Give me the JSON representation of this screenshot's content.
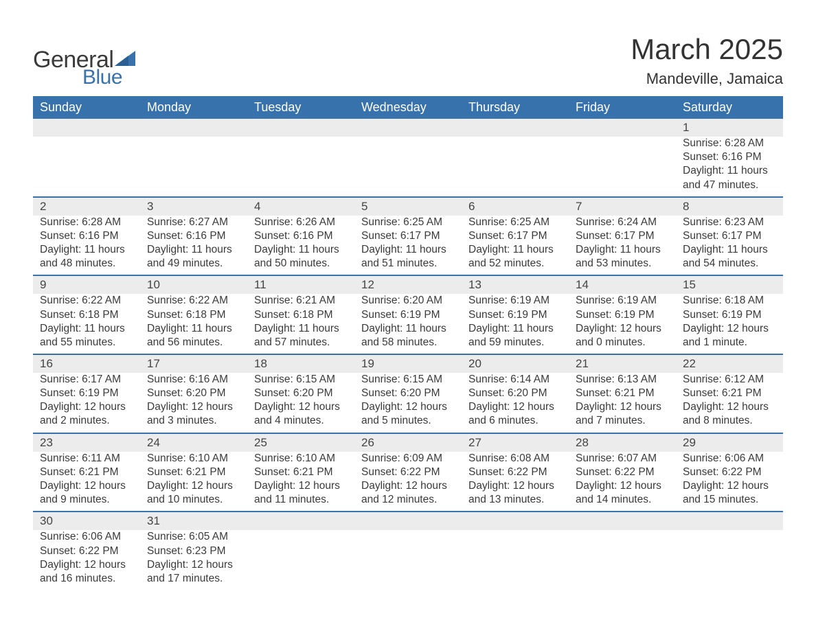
{
  "logo": {
    "general": "General",
    "blue": "Blue",
    "colors": {
      "text": "#3a3a3a",
      "accent": "#3872ac"
    }
  },
  "title": "March 2025",
  "location": "Mandeville, Jamaica",
  "weekday_headers": [
    "Sunday",
    "Monday",
    "Tuesday",
    "Wednesday",
    "Thursday",
    "Friday",
    "Saturday"
  ],
  "styling": {
    "header_bg": "#3872ac",
    "header_fg": "#ffffff",
    "daynum_bg": "#ececec",
    "row_divider": "#3872ac",
    "body_text": "#3a3a3a",
    "background": "#ffffff",
    "month_title_fontsize": 42,
    "location_fontsize": 22,
    "header_fontsize": 18,
    "cell_fontsize": 15.5
  },
  "weeks": [
    [
      null,
      null,
      null,
      null,
      null,
      null,
      {
        "n": "1",
        "sr": "Sunrise: 6:28 AM",
        "ss": "Sunset: 6:16 PM",
        "d1": "Daylight: 11 hours",
        "d2": "and 47 minutes."
      }
    ],
    [
      {
        "n": "2",
        "sr": "Sunrise: 6:28 AM",
        "ss": "Sunset: 6:16 PM",
        "d1": "Daylight: 11 hours",
        "d2": "and 48 minutes."
      },
      {
        "n": "3",
        "sr": "Sunrise: 6:27 AM",
        "ss": "Sunset: 6:16 PM",
        "d1": "Daylight: 11 hours",
        "d2": "and 49 minutes."
      },
      {
        "n": "4",
        "sr": "Sunrise: 6:26 AM",
        "ss": "Sunset: 6:16 PM",
        "d1": "Daylight: 11 hours",
        "d2": "and 50 minutes."
      },
      {
        "n": "5",
        "sr": "Sunrise: 6:25 AM",
        "ss": "Sunset: 6:17 PM",
        "d1": "Daylight: 11 hours",
        "d2": "and 51 minutes."
      },
      {
        "n": "6",
        "sr": "Sunrise: 6:25 AM",
        "ss": "Sunset: 6:17 PM",
        "d1": "Daylight: 11 hours",
        "d2": "and 52 minutes."
      },
      {
        "n": "7",
        "sr": "Sunrise: 6:24 AM",
        "ss": "Sunset: 6:17 PM",
        "d1": "Daylight: 11 hours",
        "d2": "and 53 minutes."
      },
      {
        "n": "8",
        "sr": "Sunrise: 6:23 AM",
        "ss": "Sunset: 6:17 PM",
        "d1": "Daylight: 11 hours",
        "d2": "and 54 minutes."
      }
    ],
    [
      {
        "n": "9",
        "sr": "Sunrise: 6:22 AM",
        "ss": "Sunset: 6:18 PM",
        "d1": "Daylight: 11 hours",
        "d2": "and 55 minutes."
      },
      {
        "n": "10",
        "sr": "Sunrise: 6:22 AM",
        "ss": "Sunset: 6:18 PM",
        "d1": "Daylight: 11 hours",
        "d2": "and 56 minutes."
      },
      {
        "n": "11",
        "sr": "Sunrise: 6:21 AM",
        "ss": "Sunset: 6:18 PM",
        "d1": "Daylight: 11 hours",
        "d2": "and 57 minutes."
      },
      {
        "n": "12",
        "sr": "Sunrise: 6:20 AM",
        "ss": "Sunset: 6:19 PM",
        "d1": "Daylight: 11 hours",
        "d2": "and 58 minutes."
      },
      {
        "n": "13",
        "sr": "Sunrise: 6:19 AM",
        "ss": "Sunset: 6:19 PM",
        "d1": "Daylight: 11 hours",
        "d2": "and 59 minutes."
      },
      {
        "n": "14",
        "sr": "Sunrise: 6:19 AM",
        "ss": "Sunset: 6:19 PM",
        "d1": "Daylight: 12 hours",
        "d2": "and 0 minutes."
      },
      {
        "n": "15",
        "sr": "Sunrise: 6:18 AM",
        "ss": "Sunset: 6:19 PM",
        "d1": "Daylight: 12 hours",
        "d2": "and 1 minute."
      }
    ],
    [
      {
        "n": "16",
        "sr": "Sunrise: 6:17 AM",
        "ss": "Sunset: 6:19 PM",
        "d1": "Daylight: 12 hours",
        "d2": "and 2 minutes."
      },
      {
        "n": "17",
        "sr": "Sunrise: 6:16 AM",
        "ss": "Sunset: 6:20 PM",
        "d1": "Daylight: 12 hours",
        "d2": "and 3 minutes."
      },
      {
        "n": "18",
        "sr": "Sunrise: 6:15 AM",
        "ss": "Sunset: 6:20 PM",
        "d1": "Daylight: 12 hours",
        "d2": "and 4 minutes."
      },
      {
        "n": "19",
        "sr": "Sunrise: 6:15 AM",
        "ss": "Sunset: 6:20 PM",
        "d1": "Daylight: 12 hours",
        "d2": "and 5 minutes."
      },
      {
        "n": "20",
        "sr": "Sunrise: 6:14 AM",
        "ss": "Sunset: 6:20 PM",
        "d1": "Daylight: 12 hours",
        "d2": "and 6 minutes."
      },
      {
        "n": "21",
        "sr": "Sunrise: 6:13 AM",
        "ss": "Sunset: 6:21 PM",
        "d1": "Daylight: 12 hours",
        "d2": "and 7 minutes."
      },
      {
        "n": "22",
        "sr": "Sunrise: 6:12 AM",
        "ss": "Sunset: 6:21 PM",
        "d1": "Daylight: 12 hours",
        "d2": "and 8 minutes."
      }
    ],
    [
      {
        "n": "23",
        "sr": "Sunrise: 6:11 AM",
        "ss": "Sunset: 6:21 PM",
        "d1": "Daylight: 12 hours",
        "d2": "and 9 minutes."
      },
      {
        "n": "24",
        "sr": "Sunrise: 6:10 AM",
        "ss": "Sunset: 6:21 PM",
        "d1": "Daylight: 12 hours",
        "d2": "and 10 minutes."
      },
      {
        "n": "25",
        "sr": "Sunrise: 6:10 AM",
        "ss": "Sunset: 6:21 PM",
        "d1": "Daylight: 12 hours",
        "d2": "and 11 minutes."
      },
      {
        "n": "26",
        "sr": "Sunrise: 6:09 AM",
        "ss": "Sunset: 6:22 PM",
        "d1": "Daylight: 12 hours",
        "d2": "and 12 minutes."
      },
      {
        "n": "27",
        "sr": "Sunrise: 6:08 AM",
        "ss": "Sunset: 6:22 PM",
        "d1": "Daylight: 12 hours",
        "d2": "and 13 minutes."
      },
      {
        "n": "28",
        "sr": "Sunrise: 6:07 AM",
        "ss": "Sunset: 6:22 PM",
        "d1": "Daylight: 12 hours",
        "d2": "and 14 minutes."
      },
      {
        "n": "29",
        "sr": "Sunrise: 6:06 AM",
        "ss": "Sunset: 6:22 PM",
        "d1": "Daylight: 12 hours",
        "d2": "and 15 minutes."
      }
    ],
    [
      {
        "n": "30",
        "sr": "Sunrise: 6:06 AM",
        "ss": "Sunset: 6:22 PM",
        "d1": "Daylight: 12 hours",
        "d2": "and 16 minutes."
      },
      {
        "n": "31",
        "sr": "Sunrise: 6:05 AM",
        "ss": "Sunset: 6:23 PM",
        "d1": "Daylight: 12 hours",
        "d2": "and 17 minutes."
      },
      null,
      null,
      null,
      null,
      null
    ]
  ]
}
